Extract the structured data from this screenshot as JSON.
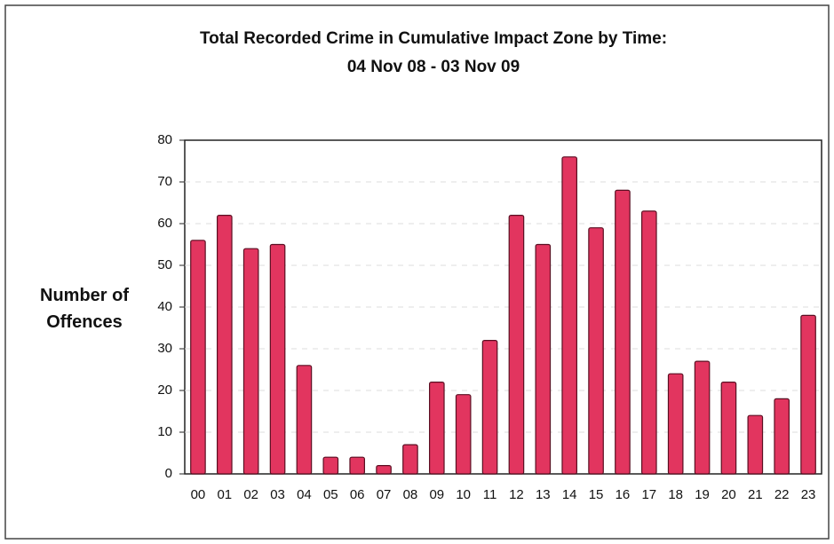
{
  "chart_data": {
    "type": "bar",
    "title": "Total Recorded Crime in Cumulative Impact Zone by Time:",
    "subtitle": "04 Nov 08 - 03 Nov 09",
    "y_label": "Number of Offences",
    "categories": [
      "00",
      "01",
      "02",
      "03",
      "04",
      "05",
      "06",
      "07",
      "08",
      "09",
      "10",
      "11",
      "12",
      "13",
      "14",
      "15",
      "16",
      "17",
      "18",
      "19",
      "20",
      "21",
      "22",
      "23"
    ],
    "values": [
      56,
      62,
      54,
      55,
      26,
      4,
      4,
      2,
      7,
      22,
      19,
      32,
      62,
      55,
      76,
      59,
      68,
      63,
      24,
      27,
      22,
      14,
      18,
      38
    ],
    "color": "#e2355f",
    "ylim": [
      0,
      80
    ],
    "yticks": [
      0,
      10,
      20,
      30,
      40,
      50,
      60,
      70,
      80
    ],
    "grid": true
  }
}
